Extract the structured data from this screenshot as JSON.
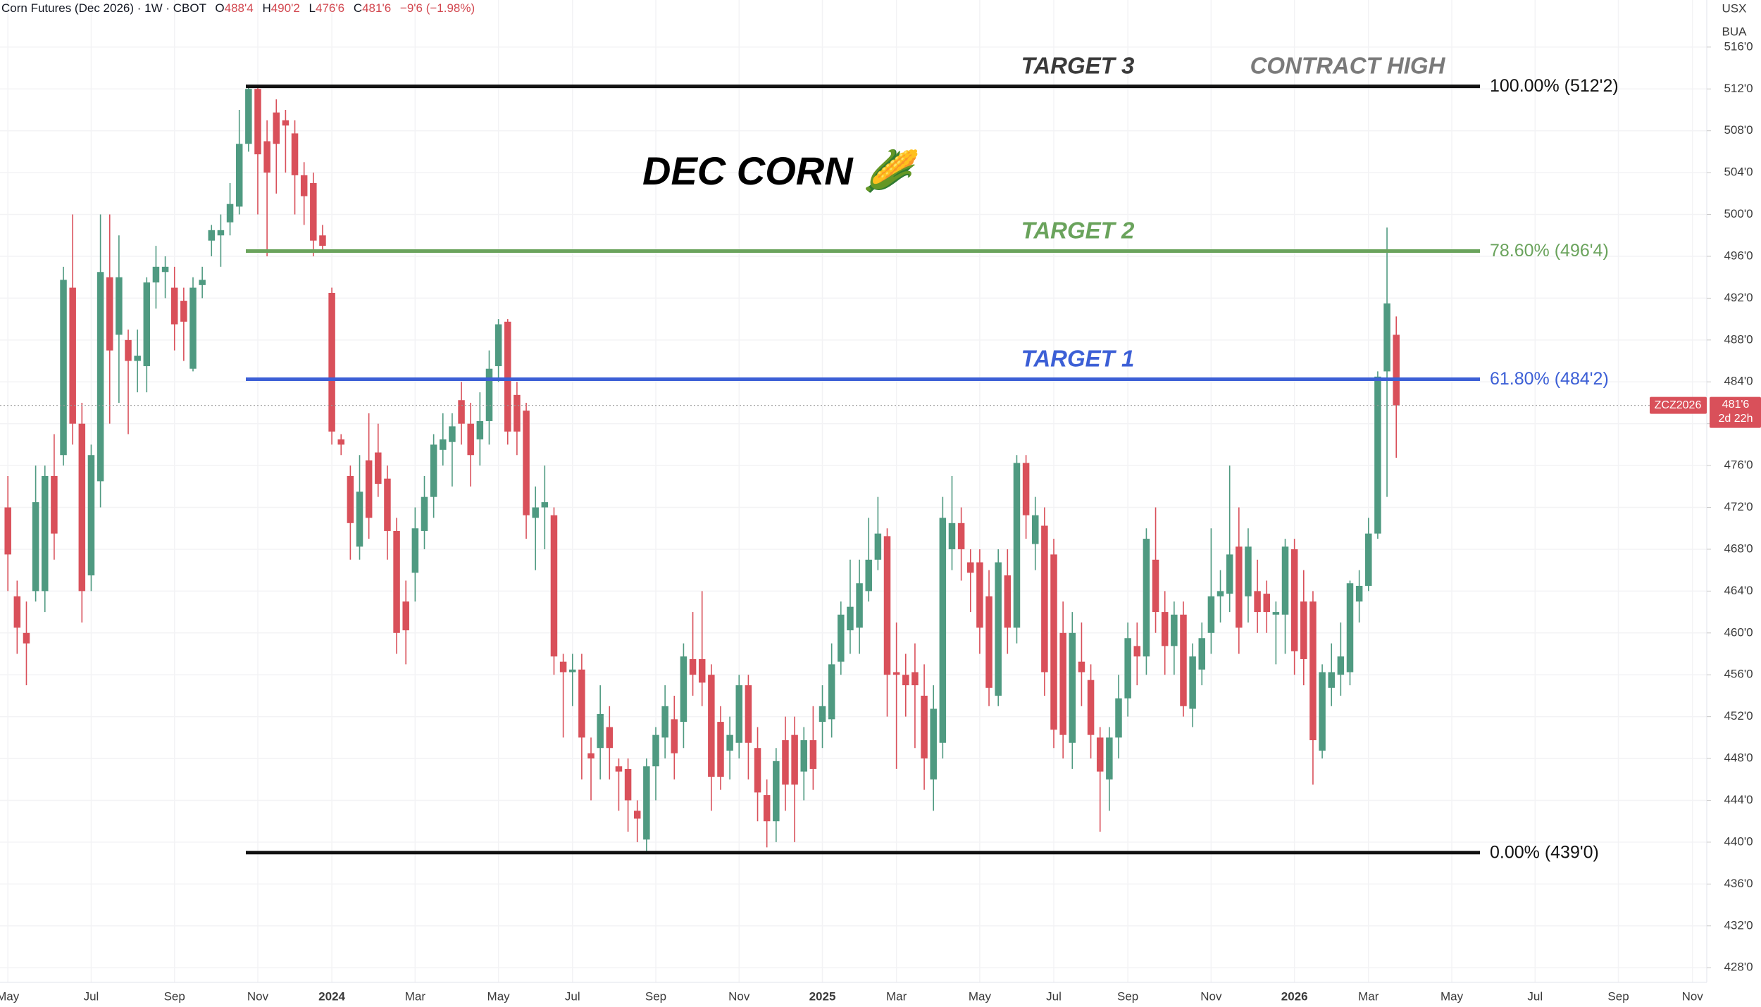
{
  "chart_data": {
    "type": "candlestick",
    "title": "DEC CORN 🌽",
    "header": {
      "symbol": "Corn Futures (Dec 2026) · 1W · CBOT",
      "ohlc": [
        {
          "key": "O",
          "value": "488'4"
        },
        {
          "key": "H",
          "value": "490'2"
        },
        {
          "key": "L",
          "value": "476'6"
        },
        {
          "key": "C",
          "value": "481'6"
        }
      ],
      "change": "−9'6 (−1.98%)"
    },
    "currency": "USX",
    "unit": "BUA",
    "categories": [
      "May",
      null,
      null,
      null,
      null,
      null,
      null,
      null,
      null,
      "Jul",
      null,
      null,
      null,
      null,
      null,
      null,
      null,
      null,
      "Sep",
      null,
      null,
      null,
      null,
      null,
      null,
      null,
      null,
      "Nov",
      null,
      null,
      null,
      null,
      null,
      null,
      null,
      "2024",
      null,
      null,
      null,
      null,
      null,
      null,
      null,
      null,
      "Mar",
      null,
      null,
      null,
      null,
      null,
      null,
      null,
      null,
      "May",
      null,
      null,
      null,
      null,
      null,
      null,
      null,
      "Jul",
      null,
      null,
      null,
      null,
      null,
      null,
      null,
      null,
      "Sep",
      null,
      null,
      null,
      null,
      null,
      null,
      null,
      null,
      "Nov",
      null,
      null,
      null,
      null,
      null,
      null,
      null,
      null,
      "2025",
      null,
      null,
      null,
      null,
      null,
      null,
      null,
      "Mar",
      null,
      null,
      null,
      null,
      null,
      null,
      null,
      null,
      "May",
      null,
      null,
      null,
      null,
      null,
      null,
      null,
      "Jul",
      null,
      null,
      null,
      null,
      null,
      null,
      null,
      "Sep",
      null,
      null,
      null,
      null,
      null,
      null,
      null,
      null,
      "Nov",
      null,
      null,
      null,
      null,
      null,
      null,
      null,
      null,
      "2026",
      null,
      null,
      null,
      null,
      null,
      null,
      null,
      "Mar",
      null,
      null,
      null,
      null,
      null,
      null,
      null,
      null,
      "May",
      null,
      null,
      null,
      null,
      null,
      null,
      null,
      null,
      "Jul",
      null,
      null,
      null,
      null,
      null,
      null,
      null,
      null,
      "Sep",
      null,
      null,
      null,
      null,
      null,
      null,
      null,
      "Nov",
      null
    ],
    "open": [
      472,
      463.5,
      460,
      464,
      464,
      475,
      477,
      493,
      480,
      465.5,
      474.5,
      494,
      488.5,
      488,
      486,
      485.5,
      493.5,
      494.5,
      493,
      491.75,
      485.25,
      493.25,
      497.5,
      498,
      499.25,
      500.75,
      506.75,
      512,
      507,
      509.75,
      509,
      507.75,
      503.75,
      503,
      498,
      492.5,
      478.5,
      475,
      468.25,
      476.5,
      477.25,
      474.75,
      469.75,
      463,
      465.75,
      469.75,
      473,
      477.5,
      478.25,
      482.25,
      480,
      478.5,
      480.25,
      485.5,
      489.75,
      482.75,
      481.25,
      471,
      472,
      471.25,
      457.25,
      456.25,
      456.5,
      448.5,
      449,
      451,
      447.25,
      447,
      443,
      440.25,
      447.25,
      450,
      451.75,
      451.5,
      457.5,
      457.5,
      456,
      451.5,
      448.75,
      449.5,
      455,
      449,
      444.5,
      442,
      449.75,
      450.25,
      446.75,
      449.75,
      451.5,
      451.75,
      457.25,
      460.25,
      460.5,
      464,
      467,
      469.25,
      456.25,
      456,
      456.25,
      454,
      446,
      449.5,
      468,
      470.5,
      466.75,
      466.75,
      463.5,
      454,
      465.5,
      460.5,
      476.25,
      468.5,
      470.25,
      467.5,
      460,
      449.5,
      457.25,
      455.5,
      450,
      446,
      450,
      453.75,
      458.75,
      457.75,
      467,
      462,
      458.75,
      461.75,
      452.75,
      456.5,
      460,
      463.5,
      463.75,
      468.25,
      463.5,
      464,
      463.75,
      461.75,
      461.75,
      468,
      463,
      463,
      448.75,
      454.75,
      456,
      456.25,
      463,
      464.5,
      469.5,
      485,
      488.5,
      null,
      null,
      null,
      null,
      null,
      null,
      null,
      null,
      null,
      null,
      null,
      null,
      null,
      null,
      null,
      null,
      null,
      null,
      null,
      null,
      null,
      null,
      null,
      null,
      null,
      null,
      null,
      null,
      null,
      null,
      null,
      null,
      null
    ],
    "high": [
      475,
      465,
      463,
      476,
      476,
      479,
      495,
      500,
      482,
      478,
      500,
      500,
      498,
      489,
      489,
      494,
      497,
      496,
      495,
      493,
      494,
      495,
      499,
      500,
      503,
      510,
      512.25,
      512.25,
      509,
      511,
      510,
      509,
      505,
      504,
      499,
      493,
      479,
      476,
      477,
      481,
      480,
      476,
      471,
      465,
      472,
      475,
      479,
      481,
      481,
      484,
      482,
      483,
      487,
      490,
      490,
      484,
      482,
      474,
      476,
      472,
      458,
      458,
      458,
      450,
      455,
      453,
      448,
      448,
      444,
      448,
      451,
      455,
      454,
      459,
      462,
      464,
      457,
      453,
      452,
      456,
      456,
      451,
      446,
      449,
      452,
      452,
      451,
      453,
      455,
      459,
      463,
      467,
      467,
      471,
      473,
      470,
      461,
      458,
      459,
      457,
      455,
      473,
      475,
      472,
      468,
      468,
      466,
      468,
      468,
      477,
      477,
      473,
      472,
      469,
      463,
      462,
      461,
      457,
      451,
      451,
      456,
      461,
      461,
      470,
      472,
      464,
      463,
      463,
      459,
      461,
      470,
      466,
      476,
      472,
      470,
      467,
      465,
      463,
      469,
      469,
      466,
      464,
      457,
      459,
      461,
      465,
      466,
      471,
      485,
      498.75,
      490.25,
      null,
      null,
      null,
      null,
      null,
      null,
      null,
      null,
      null,
      null,
      null,
      null,
      null,
      null,
      null,
      null,
      null,
      null,
      null,
      null,
      null,
      null,
      null,
      null,
      null,
      null,
      null,
      null,
      null,
      null,
      null,
      null,
      null
    ],
    "low": [
      464,
      458,
      455,
      463,
      462,
      467,
      476,
      478,
      461,
      464,
      472,
      480,
      482,
      479,
      483,
      483,
      491,
      492,
      487,
      486,
      485,
      492,
      496,
      495,
      498,
      500,
      506,
      500,
      496,
      502,
      504,
      500,
      499,
      496,
      496.5,
      478,
      477,
      467,
      467,
      469,
      473,
      467,
      458,
      457,
      463,
      468,
      471,
      476,
      474,
      478,
      474,
      476,
      478,
      484,
      478,
      477,
      469,
      466,
      468,
      456,
      450,
      453,
      446,
      444,
      446,
      446,
      443,
      441,
      440,
      439,
      444,
      448,
      446,
      449,
      454,
      453,
      443,
      445,
      446,
      448,
      446,
      442,
      439.5,
      440,
      443,
      440,
      444,
      445,
      449,
      450,
      456,
      458,
      458,
      463,
      466,
      452,
      447,
      452,
      449,
      445,
      443,
      448,
      466,
      465,
      462,
      458,
      453,
      453,
      458,
      459,
      469,
      466,
      454,
      449,
      448,
      447,
      453,
      448,
      441,
      443,
      448,
      452,
      455,
      456,
      460,
      456,
      456,
      452,
      451,
      455,
      458,
      461,
      462,
      458,
      461,
      460,
      460,
      457,
      458,
      456,
      455,
      445.5,
      448,
      453,
      454,
      455,
      461,
      464,
      469,
      473,
      476.75,
      null,
      null,
      null,
      null,
      null,
      null,
      null,
      null,
      null,
      null,
      null,
      null,
      null,
      null,
      null,
      null,
      null,
      null,
      null,
      null,
      null,
      null,
      null,
      null,
      null,
      null,
      null,
      null,
      null,
      null,
      null,
      null,
      null
    ],
    "close": [
      467.5,
      460.5,
      459,
      472.5,
      475,
      469.5,
      493.75,
      480,
      464,
      477,
      494.5,
      487,
      494,
      486,
      486.5,
      493.5,
      495,
      495,
      489.5,
      489.75,
      493,
      493.75,
      498.5,
      498.5,
      501,
      506.75,
      512,
      505.75,
      504,
      506.75,
      508.5,
      503.75,
      501.75,
      497.5,
      497,
      479.25,
      478,
      470.5,
      473.5,
      471,
      474.25,
      469.75,
      460,
      460.25,
      470,
      473,
      478,
      478.5,
      479.75,
      480,
      477,
      480.25,
      485.25,
      489.5,
      479.25,
      479.25,
      471.25,
      472,
      472.5,
      457.75,
      456.25,
      456.5,
      450,
      448,
      452.25,
      449,
      446.75,
      444,
      442.25,
      447.25,
      450.25,
      453,
      448.5,
      457.75,
      456,
      455.25,
      446.25,
      446.25,
      450.25,
      455,
      449.5,
      444.75,
      442,
      447.75,
      445.5,
      445.5,
      449.75,
      447,
      453,
      457,
      461.75,
      462.5,
      464.75,
      467,
      469.5,
      456,
      456,
      455,
      455,
      448,
      452.75,
      471,
      470.5,
      468,
      465.75,
      460.5,
      454.75,
      466.75,
      460.5,
      476.25,
      471.25,
      471.25,
      456.25,
      450.75,
      450.25,
      460,
      456.25,
      450.25,
      446.75,
      450,
      453.75,
      459.5,
      457.75,
      469,
      462,
      458.75,
      461.75,
      453,
      457.75,
      459.5,
      463.5,
      464,
      467.5,
      460.5,
      468.25,
      462,
      462,
      462,
      468.25,
      458.25,
      457.5,
      449.75,
      456.25,
      456.25,
      457.75,
      464.75,
      464.5,
      469.5,
      484.5,
      491.5,
      481.75,
      null,
      null,
      null,
      null,
      null,
      null,
      null,
      null,
      null,
      null,
      null,
      null,
      null,
      null,
      null,
      null,
      null,
      null,
      null,
      null,
      null,
      null,
      null,
      null,
      null,
      null,
      null,
      null,
      null,
      null,
      null,
      null,
      null
    ],
    "up_color": "#4f9a81",
    "down_color": "#d9505a",
    "ylim": [
      426.6,
      520.5
    ],
    "yticks": [
      {
        "value": 428,
        "label": "428'0"
      },
      {
        "value": 432,
        "label": "432'0"
      },
      {
        "value": 436,
        "label": "436'0"
      },
      {
        "value": 440,
        "label": "440'0"
      },
      {
        "value": 444,
        "label": "444'0"
      },
      {
        "value": 448,
        "label": "448'0"
      },
      {
        "value": 452,
        "label": "452'0"
      },
      {
        "value": 456,
        "label": "456'0"
      },
      {
        "value": 460,
        "label": "460'0"
      },
      {
        "value": 464,
        "label": "464'0"
      },
      {
        "value": 468,
        "label": "468'0"
      },
      {
        "value": 472,
        "label": "472'0"
      },
      {
        "value": 476,
        "label": "476'0"
      },
      {
        "value": 480,
        "label": "480'0"
      },
      {
        "value": 484,
        "label": "484'0"
      },
      {
        "value": 488,
        "label": "488'0"
      },
      {
        "value": 492,
        "label": "492'0"
      },
      {
        "value": 496,
        "label": "496'0"
      },
      {
        "value": 500,
        "label": "500'0"
      },
      {
        "value": 504,
        "label": "504'0"
      },
      {
        "value": 508,
        "label": "508'0"
      },
      {
        "value": 512,
        "label": "512'0"
      },
      {
        "value": 516,
        "label": "516'0"
      }
    ],
    "grid": true,
    "levels": [
      {
        "label": "100.00% (512'2)",
        "value": 512.25,
        "color": "#111111",
        "label_color": "#111111",
        "target": "TARGET 3",
        "target_color": "#3a3a3a",
        "note": "CONTRACT HIGH",
        "note_color": "#7a7a7a"
      },
      {
        "label": "78.60% (496'4)",
        "value": 496.5,
        "color": "#6aa35c",
        "label_color": "#6aa35c",
        "target": "TARGET 2",
        "target_color": "#6aa35c"
      },
      {
        "label": "61.80% (484'2)",
        "value": 484.25,
        "color": "#3c5fd6",
        "label_color": "#3c5fd6",
        "target": "TARGET 1",
        "target_color": "#3c5fd6"
      },
      {
        "label": "0.00% (439'0)",
        "value": 439,
        "color": "#111111",
        "label_color": "#111111"
      }
    ],
    "last": {
      "name": "ZCZ2026",
      "value": 481.75,
      "label": "481'6",
      "countdown": "2d 22h",
      "color": "#d9505a"
    }
  }
}
